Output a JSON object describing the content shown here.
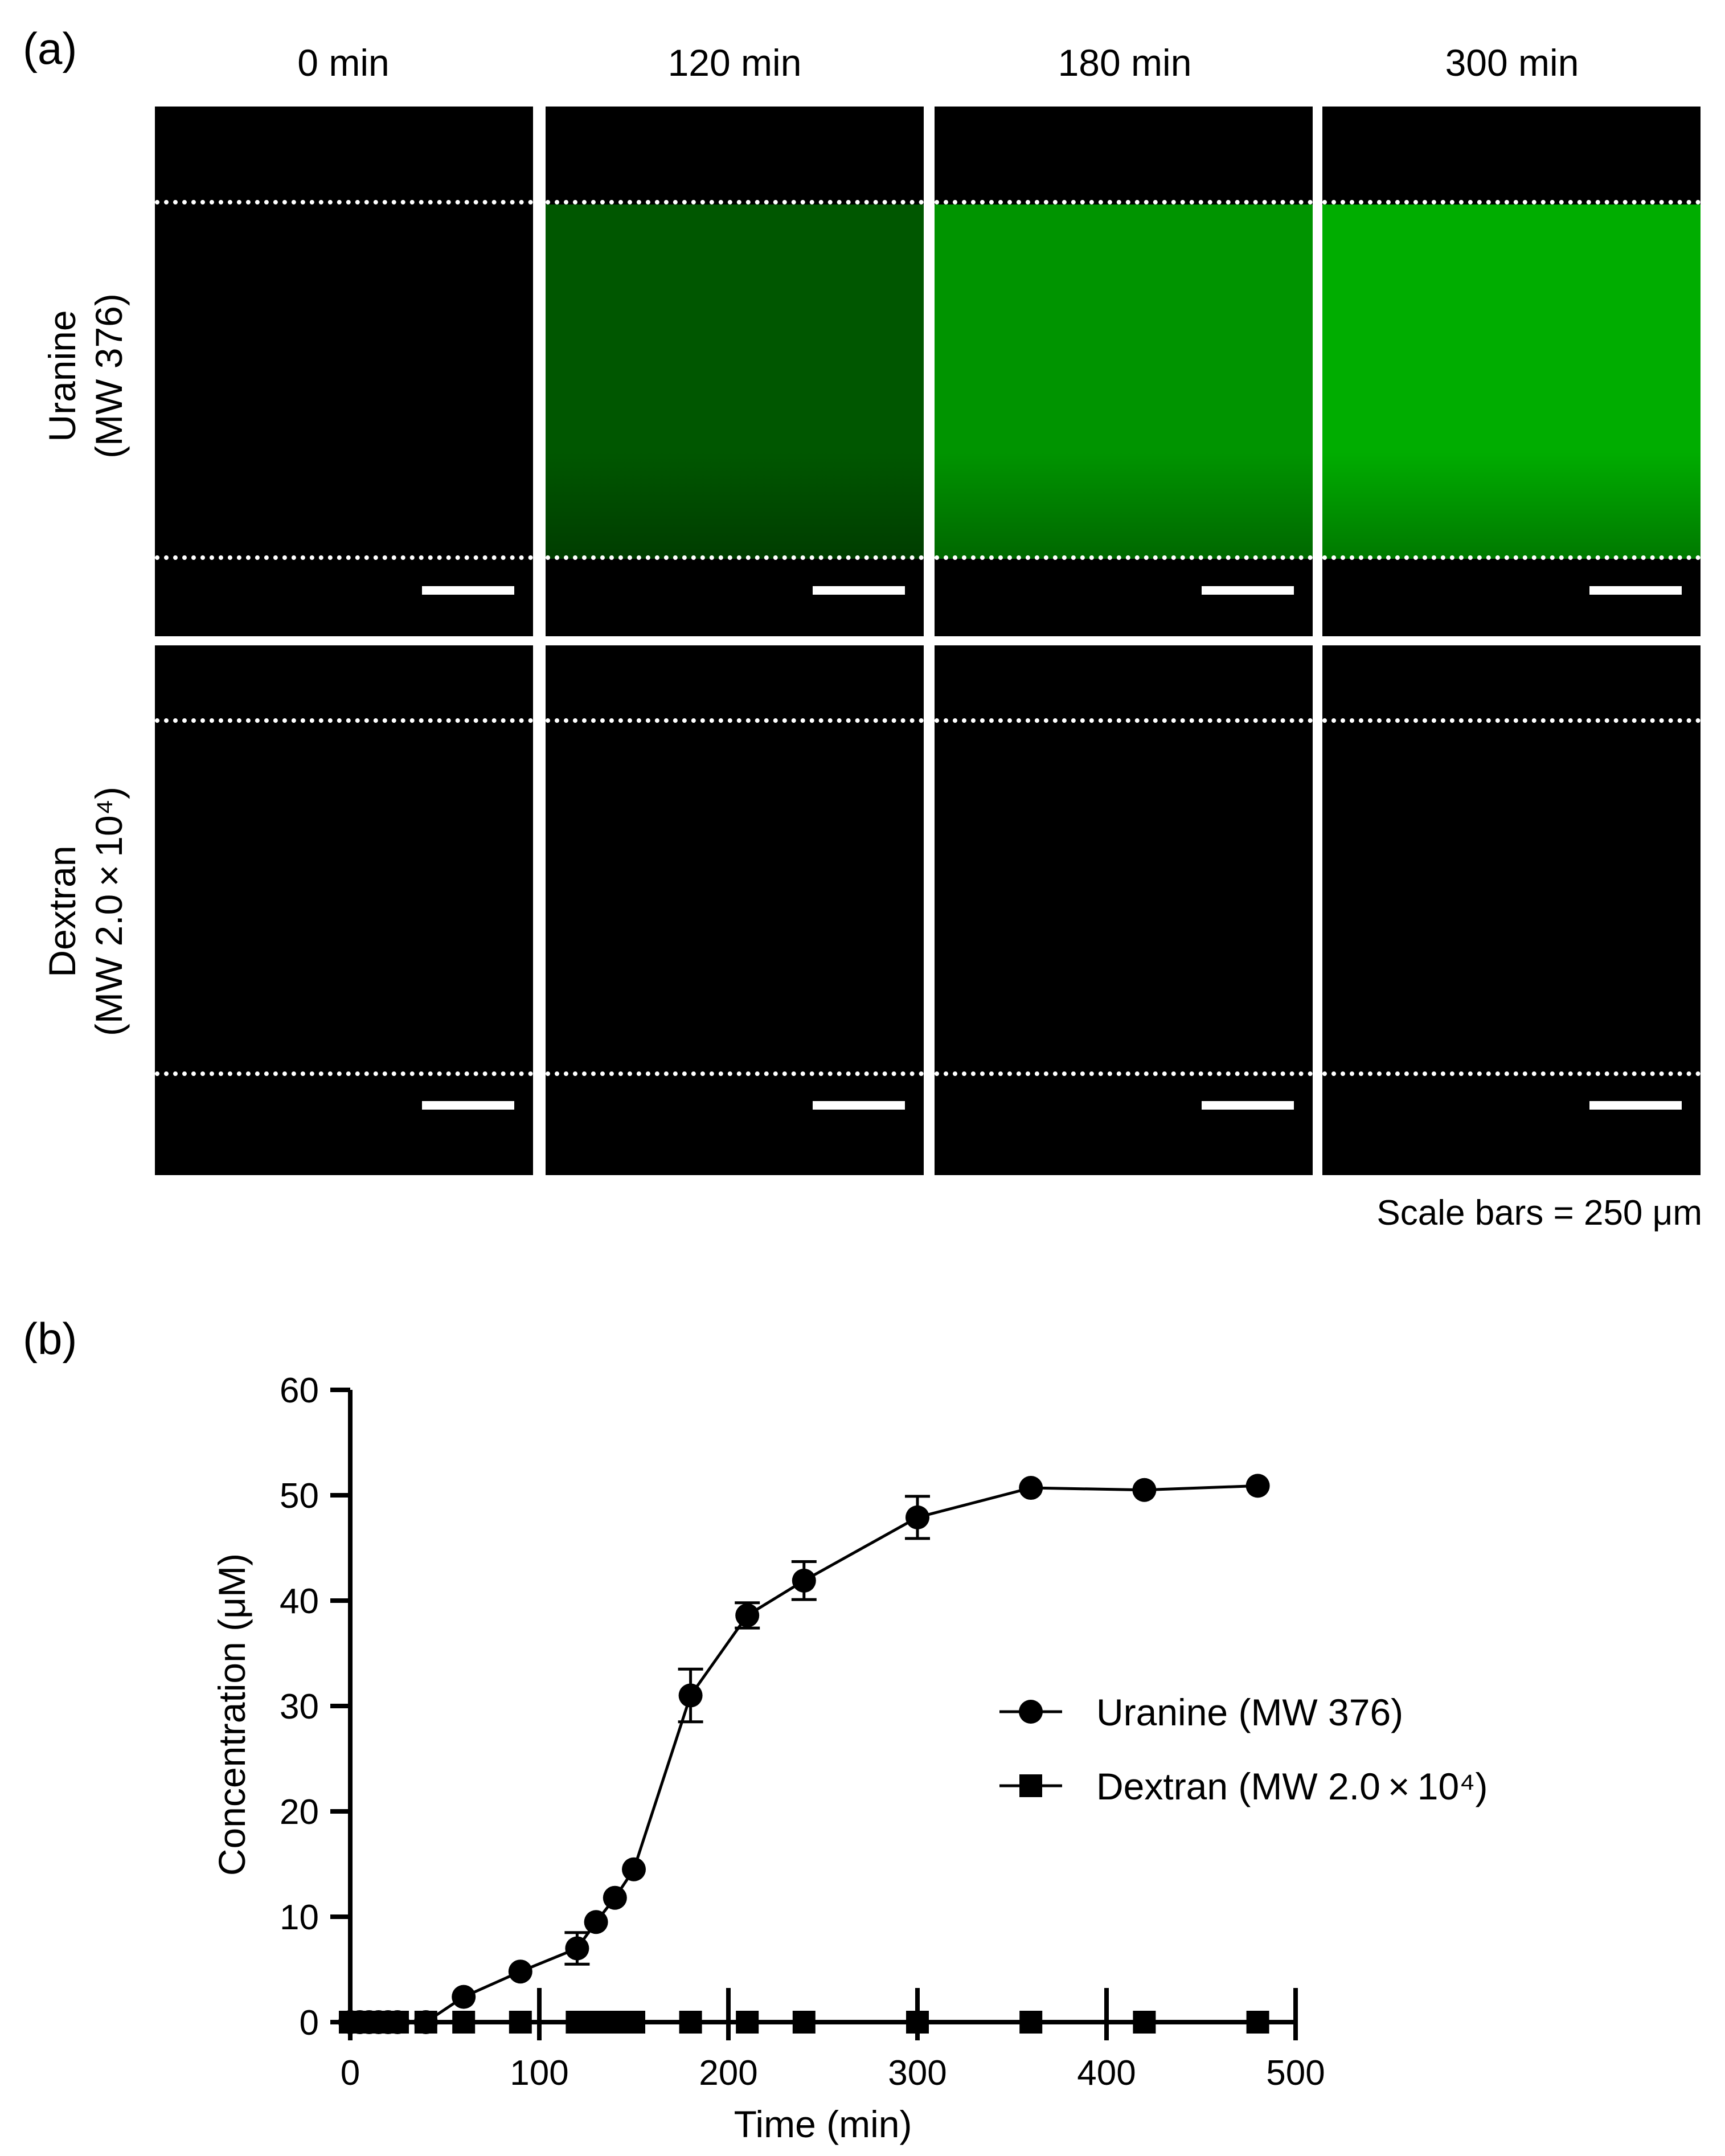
{
  "panel_a": {
    "label": "(a)",
    "columns": [
      "0 min",
      "120 min",
      "180 min",
      "300 min"
    ],
    "rows": [
      {
        "line1": "Uranine",
        "line2": "(MW 376)",
        "green_intensity": [
          0.0,
          0.22,
          0.5,
          0.62
        ]
      },
      {
        "line1": "Dextran",
        "line2": "(MW 2.0 × 10⁴)",
        "green_intensity": [
          0.0,
          0.0,
          0.0,
          0.0
        ]
      }
    ],
    "scale_note": "Scale bars = 250 μm",
    "fluorescence_color": "#14a014"
  },
  "panel_b": {
    "label": "(b)"
  },
  "chart_data": {
    "type": "line",
    "xlabel": "Time (min)",
    "ylabel": "Concentration (μM)",
    "xlim": [
      0,
      500
    ],
    "ylim": [
      0,
      60
    ],
    "xticks": [
      0,
      100,
      200,
      300,
      400,
      500
    ],
    "yticks": [
      0,
      10,
      20,
      30,
      40,
      50,
      60
    ],
    "legend_position": "center-right",
    "series": [
      {
        "name": "Uranine (MW 376)",
        "marker": "circle",
        "x": [
          0,
          5,
          10,
          15,
          20,
          25,
          40,
          60,
          90,
          120,
          130,
          140,
          150,
          180,
          210,
          240,
          300,
          360,
          420,
          480
        ],
        "y": [
          0,
          0,
          0,
          0,
          0,
          0,
          0,
          2.4,
          4.8,
          7.0,
          9.5,
          11.8,
          14.5,
          31.0,
          38.6,
          41.9,
          47.9,
          50.7,
          50.5,
          50.9
        ],
        "err": [
          0,
          0,
          0,
          0,
          0,
          0,
          0,
          0,
          0,
          1.5,
          0,
          0,
          0,
          2.5,
          1.2,
          1.8,
          2.0,
          0,
          0,
          0
        ]
      },
      {
        "name": "Dextran (MW 2.0 × 10⁴)",
        "marker": "square",
        "x": [
          0,
          5,
          10,
          15,
          20,
          25,
          40,
          60,
          90,
          120,
          130,
          140,
          150,
          180,
          210,
          240,
          300,
          360,
          420,
          480
        ],
        "y": [
          0,
          0,
          0,
          0,
          0,
          0,
          0,
          0,
          0,
          0,
          0,
          0,
          0,
          0,
          0,
          0,
          0,
          0,
          0,
          0
        ]
      }
    ]
  }
}
